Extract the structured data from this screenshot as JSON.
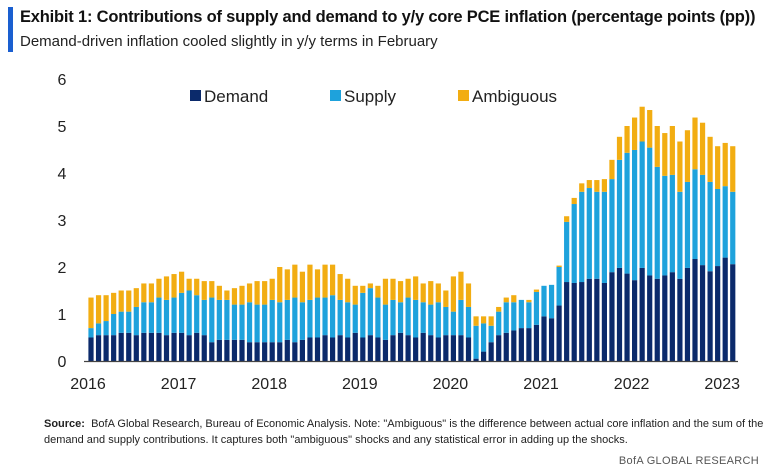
{
  "title": "Exhibit 1: Contributions of supply and demand to y/y core PCE inflation (percentage points (pp))",
  "subtitle": "Demand-driven inflation cooled slightly in y/y terms in February",
  "source_label": "Source:",
  "source_text": "BofA Global Research, Bureau of Economic Analysis. Note: \"Ambiguous\" is the difference between actual core inflation and the sum of the demand and supply contributions. It captures both \"ambiguous\" shocks and any statistical error in adding up the shocks.",
  "brand": "BofA GLOBAL RESEARCH",
  "colors": {
    "demand": "#0b2a6b",
    "supply": "#1ea2dc",
    "ambiguous": "#f2ad12",
    "accent": "#1a5fd0"
  },
  "chart_data": {
    "type": "bar",
    "stacked": true,
    "title": "Contributions of supply and demand to y/y core PCE inflation (pp)",
    "xlabel": "",
    "ylabel": "",
    "ylim": [
      0,
      6
    ],
    "yticks": [
      "0",
      "1",
      "2",
      "3",
      "4",
      "5",
      "6"
    ],
    "xticks": [
      "2016",
      "2017",
      "2018",
      "2019",
      "2020",
      "2021",
      "2022",
      "2023"
    ],
    "start": "2016-01",
    "end": "2023-02",
    "frequency": "monthly",
    "legend_position": "top",
    "series": [
      {
        "name": "Demand",
        "values": [
          0.5,
          0.55,
          0.55,
          0.55,
          0.6,
          0.6,
          0.55,
          0.6,
          0.6,
          0.6,
          0.55,
          0.6,
          0.6,
          0.55,
          0.6,
          0.55,
          0.4,
          0.45,
          0.45,
          0.45,
          0.45,
          0.4,
          0.4,
          0.4,
          0.4,
          0.4,
          0.45,
          0.4,
          0.45,
          0.5,
          0.5,
          0.55,
          0.5,
          0.55,
          0.5,
          0.6,
          0.5,
          0.55,
          0.5,
          0.45,
          0.55,
          0.6,
          0.55,
          0.5,
          0.6,
          0.55,
          0.5,
          0.55,
          0.55,
          0.55,
          0.5,
          0.05,
          0.2,
          0.4,
          0.55,
          0.6,
          0.65,
          0.7,
          0.7,
          0.77,
          0.95,
          0.91,
          1.18,
          1.68,
          1.66,
          1.68,
          1.75,
          1.75,
          1.66,
          1.89,
          1.98,
          1.86,
          1.72,
          1.98,
          1.82,
          1.75,
          1.82,
          1.89,
          1.75,
          1.98,
          2.17,
          2.04,
          1.91,
          2.02,
          2.2,
          2.06
        ]
      },
      {
        "name": "Supply",
        "values": [
          0.2,
          0.25,
          0.3,
          0.45,
          0.45,
          0.45,
          0.6,
          0.65,
          0.65,
          0.75,
          0.75,
          0.75,
          0.85,
          0.95,
          0.8,
          0.75,
          0.95,
          0.85,
          0.85,
          0.75,
          0.75,
          0.85,
          0.8,
          0.8,
          0.9,
          0.85,
          0.85,
          0.95,
          0.8,
          0.8,
          0.85,
          0.8,
          0.9,
          0.75,
          0.75,
          0.6,
          0.95,
          1.0,
          0.85,
          0.75,
          0.75,
          0.65,
          0.8,
          0.8,
          0.65,
          0.65,
          0.75,
          0.6,
          0.5,
          0.75,
          0.65,
          0.7,
          0.6,
          0.35,
          0.5,
          0.65,
          0.6,
          0.6,
          0.55,
          0.7,
          0.65,
          0.71,
          0.82,
          1.28,
          1.68,
          1.92,
          1.93,
          1.85,
          1.94,
          1.98,
          2.3,
          2.57,
          2.77,
          2.69,
          2.72,
          2.38,
          2.12,
          2.07,
          1.85,
          1.83,
          1.91,
          1.92,
          1.9,
          1.64,
          1.52,
          1.54
        ]
      },
      {
        "name": "Ambiguous",
        "values": [
          0.65,
          0.6,
          0.55,
          0.45,
          0.45,
          0.45,
          0.4,
          0.4,
          0.4,
          0.4,
          0.5,
          0.5,
          0.45,
          0.25,
          0.35,
          0.4,
          0.35,
          0.3,
          0.2,
          0.35,
          0.4,
          0.4,
          0.5,
          0.5,
          0.45,
          0.75,
          0.65,
          0.7,
          0.65,
          0.75,
          0.6,
          0.7,
          0.65,
          0.55,
          0.5,
          0.4,
          0.15,
          0.1,
          0.25,
          0.55,
          0.45,
          0.45,
          0.4,
          0.5,
          0.4,
          0.5,
          0.4,
          0.35,
          0.75,
          0.6,
          0.5,
          0.2,
          0.15,
          0.2,
          0.1,
          0.1,
          0.15,
          0.0,
          0.05,
          0.05,
          0.0,
          0.0,
          0.03,
          0.12,
          0.13,
          0.18,
          0.17,
          0.25,
          0.27,
          0.41,
          0.49,
          0.57,
          0.69,
          0.74,
          0.8,
          0.87,
          0.91,
          1.04,
          1.07,
          1.1,
          1.1,
          1.11,
          0.96,
          0.91,
          0.92,
          0.97
        ]
      }
    ]
  }
}
